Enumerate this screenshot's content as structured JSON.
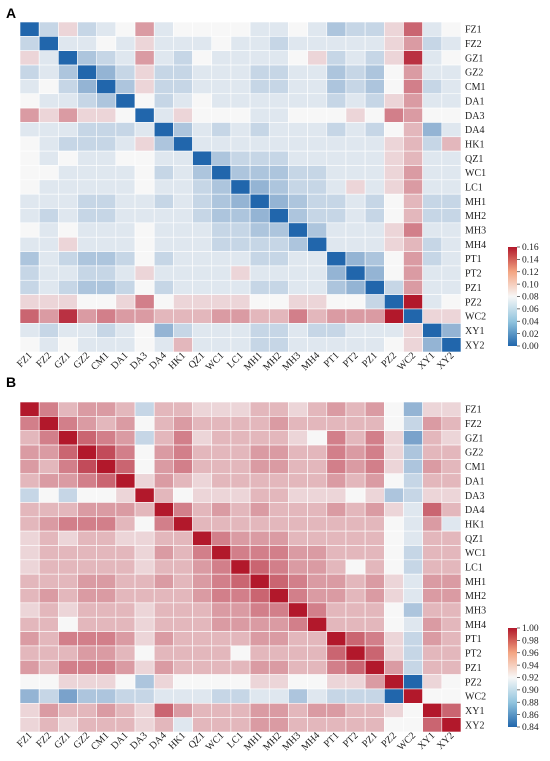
{
  "chart_data": [
    {
      "type": "heatmap",
      "panel_label": "A",
      "labels": [
        "FZ1",
        "FZ2",
        "GZ1",
        "GZ2",
        "CM1",
        "DA1",
        "DA3",
        "DA4",
        "HK1",
        "QZ1",
        "WC1",
        "LC1",
        "MH1",
        "MH2",
        "MH3",
        "MH4",
        "PT1",
        "PT2",
        "PZ1",
        "PZ2",
        "WC2",
        "XY1",
        "XY2"
      ],
      "colorbar": {
        "min": 0.0,
        "max": 0.16,
        "ticks": [
          "0.00",
          "0.02",
          "0.04",
          "0.06",
          "0.08",
          "0.10",
          "0.12",
          "0.14",
          "0.16"
        ]
      },
      "colors": {
        "low": "#2166ac",
        "mid": "#f7f7f7",
        "high": "#b2182b"
      },
      "values": [
        [
          0.0,
          0.06,
          0.09,
          0.06,
          0.07,
          0.08,
          0.11,
          0.07,
          0.08,
          0.08,
          0.08,
          0.08,
          0.07,
          0.07,
          0.08,
          0.07,
          0.05,
          0.06,
          0.06,
          0.09,
          0.13,
          0.07,
          0.08
        ],
        [
          0.06,
          0.0,
          0.07,
          0.07,
          0.08,
          0.07,
          0.09,
          0.07,
          0.07,
          0.07,
          0.08,
          0.07,
          0.07,
          0.06,
          0.07,
          0.07,
          0.07,
          0.07,
          0.07,
          0.09,
          0.11,
          0.06,
          0.07
        ],
        [
          0.09,
          0.07,
          0.0,
          0.05,
          0.06,
          0.07,
          0.11,
          0.07,
          0.06,
          0.08,
          0.07,
          0.07,
          0.07,
          0.07,
          0.08,
          0.09,
          0.06,
          0.07,
          0.06,
          0.09,
          0.15,
          0.07,
          0.08
        ],
        [
          0.06,
          0.07,
          0.05,
          0.0,
          0.04,
          0.06,
          0.09,
          0.06,
          0.06,
          0.07,
          0.07,
          0.07,
          0.06,
          0.06,
          0.07,
          0.07,
          0.05,
          0.06,
          0.05,
          0.08,
          0.11,
          0.07,
          0.07
        ],
        [
          0.07,
          0.08,
          0.06,
          0.04,
          0.0,
          0.05,
          0.09,
          0.06,
          0.06,
          0.07,
          0.07,
          0.07,
          0.06,
          0.06,
          0.07,
          0.07,
          0.05,
          0.06,
          0.05,
          0.08,
          0.12,
          0.06,
          0.07
        ],
        [
          0.08,
          0.07,
          0.07,
          0.06,
          0.05,
          0.0,
          0.08,
          0.06,
          0.07,
          0.08,
          0.07,
          0.07,
          0.07,
          0.07,
          0.07,
          0.07,
          0.06,
          0.07,
          0.06,
          0.09,
          0.11,
          0.07,
          0.07
        ],
        [
          0.11,
          0.09,
          0.11,
          0.09,
          0.09,
          0.08,
          0.0,
          0.07,
          0.09,
          0.08,
          0.08,
          0.08,
          0.07,
          0.07,
          0.08,
          0.08,
          0.08,
          0.09,
          0.08,
          0.12,
          0.11,
          0.08,
          0.08
        ],
        [
          0.07,
          0.07,
          0.07,
          0.06,
          0.06,
          0.06,
          0.07,
          0.0,
          0.05,
          0.07,
          0.06,
          0.07,
          0.06,
          0.07,
          0.07,
          0.07,
          0.06,
          0.07,
          0.06,
          0.08,
          0.1,
          0.04,
          0.07
        ],
        [
          0.08,
          0.07,
          0.06,
          0.06,
          0.06,
          0.07,
          0.09,
          0.05,
          0.0,
          0.07,
          0.07,
          0.07,
          0.07,
          0.07,
          0.07,
          0.07,
          0.07,
          0.07,
          0.07,
          0.09,
          0.1,
          0.06,
          0.1
        ],
        [
          0.08,
          0.07,
          0.08,
          0.07,
          0.07,
          0.08,
          0.08,
          0.07,
          0.07,
          0.0,
          0.05,
          0.06,
          0.06,
          0.06,
          0.07,
          0.07,
          0.07,
          0.07,
          0.07,
          0.09,
          0.1,
          0.07,
          0.07
        ],
        [
          0.08,
          0.08,
          0.07,
          0.07,
          0.07,
          0.07,
          0.08,
          0.06,
          0.07,
          0.05,
          0.0,
          0.05,
          0.05,
          0.05,
          0.06,
          0.06,
          0.07,
          0.07,
          0.07,
          0.09,
          0.11,
          0.07,
          0.07
        ],
        [
          0.08,
          0.07,
          0.07,
          0.07,
          0.07,
          0.07,
          0.08,
          0.07,
          0.07,
          0.06,
          0.05,
          0.0,
          0.04,
          0.05,
          0.06,
          0.06,
          0.07,
          0.09,
          0.07,
          0.09,
          0.11,
          0.07,
          0.07
        ],
        [
          0.07,
          0.07,
          0.07,
          0.06,
          0.06,
          0.07,
          0.07,
          0.06,
          0.07,
          0.06,
          0.05,
          0.04,
          0.0,
          0.04,
          0.05,
          0.06,
          0.06,
          0.07,
          0.06,
          0.08,
          0.1,
          0.06,
          0.06
        ],
        [
          0.07,
          0.06,
          0.07,
          0.06,
          0.06,
          0.07,
          0.07,
          0.07,
          0.07,
          0.06,
          0.05,
          0.05,
          0.04,
          0.0,
          0.05,
          0.06,
          0.06,
          0.07,
          0.06,
          0.08,
          0.1,
          0.06,
          0.06
        ],
        [
          0.08,
          0.07,
          0.08,
          0.07,
          0.07,
          0.07,
          0.08,
          0.07,
          0.07,
          0.07,
          0.06,
          0.06,
          0.05,
          0.05,
          0.0,
          0.05,
          0.07,
          0.07,
          0.07,
          0.09,
          0.12,
          0.07,
          0.07
        ],
        [
          0.07,
          0.07,
          0.09,
          0.07,
          0.07,
          0.07,
          0.08,
          0.07,
          0.07,
          0.07,
          0.06,
          0.06,
          0.06,
          0.06,
          0.05,
          0.0,
          0.07,
          0.07,
          0.07,
          0.09,
          0.1,
          0.06,
          0.07
        ],
        [
          0.05,
          0.07,
          0.06,
          0.05,
          0.05,
          0.06,
          0.08,
          0.06,
          0.07,
          0.07,
          0.07,
          0.07,
          0.06,
          0.06,
          0.07,
          0.07,
          0.0,
          0.04,
          0.05,
          0.08,
          0.11,
          0.06,
          0.07
        ],
        [
          0.06,
          0.07,
          0.07,
          0.06,
          0.06,
          0.07,
          0.09,
          0.07,
          0.07,
          0.07,
          0.07,
          0.09,
          0.07,
          0.07,
          0.07,
          0.07,
          0.04,
          0.0,
          0.04,
          0.08,
          0.11,
          0.07,
          0.07
        ],
        [
          0.06,
          0.07,
          0.06,
          0.05,
          0.05,
          0.06,
          0.08,
          0.06,
          0.07,
          0.07,
          0.07,
          0.07,
          0.06,
          0.06,
          0.07,
          0.07,
          0.05,
          0.04,
          0.0,
          0.06,
          0.11,
          0.07,
          0.07
        ],
        [
          0.09,
          0.09,
          0.09,
          0.08,
          0.08,
          0.09,
          0.12,
          0.08,
          0.09,
          0.09,
          0.09,
          0.09,
          0.08,
          0.08,
          0.09,
          0.09,
          0.08,
          0.08,
          0.06,
          0.0,
          0.16,
          0.07,
          0.08
        ],
        [
          0.13,
          0.11,
          0.15,
          0.11,
          0.12,
          0.11,
          0.11,
          0.1,
          0.1,
          0.1,
          0.11,
          0.11,
          0.1,
          0.1,
          0.12,
          0.1,
          0.11,
          0.11,
          0.11,
          0.16,
          0.0,
          0.09,
          0.09
        ],
        [
          0.07,
          0.06,
          0.07,
          0.07,
          0.06,
          0.07,
          0.08,
          0.04,
          0.06,
          0.07,
          0.07,
          0.07,
          0.06,
          0.06,
          0.07,
          0.06,
          0.06,
          0.07,
          0.07,
          0.07,
          0.09,
          0.0,
          0.04
        ],
        [
          0.08,
          0.07,
          0.08,
          0.07,
          0.07,
          0.07,
          0.08,
          0.07,
          0.1,
          0.07,
          0.07,
          0.07,
          0.06,
          0.06,
          0.07,
          0.07,
          0.07,
          0.07,
          0.07,
          0.08,
          0.09,
          0.04,
          0.0
        ]
      ]
    },
    {
      "type": "heatmap",
      "panel_label": "B",
      "labels": [
        "FZ1",
        "FZ2",
        "GZ1",
        "GZ2",
        "CM1",
        "DA1",
        "DA3",
        "DA4",
        "HK1",
        "QZ1",
        "WC1",
        "LC1",
        "MH1",
        "MH2",
        "MH3",
        "MH4",
        "PT1",
        "PT2",
        "PZ1",
        "PZ2",
        "WC2",
        "XY1",
        "XY2"
      ],
      "colorbar": {
        "min": 0.84,
        "max": 1.0,
        "ticks": [
          "0.84",
          "0.86",
          "0.88",
          "0.90",
          "0.92",
          "0.94",
          "0.96",
          "0.98",
          "1.00"
        ]
      },
      "colors": {
        "low": "#2166ac",
        "mid": "#f7f7f7",
        "high": "#b2182b"
      },
      "values": [
        [
          1.0,
          0.96,
          0.94,
          0.95,
          0.95,
          0.94,
          0.9,
          0.94,
          0.94,
          0.93,
          0.93,
          0.93,
          0.94,
          0.94,
          0.93,
          0.94,
          0.95,
          0.94,
          0.95,
          0.92,
          0.88,
          0.93,
          0.93
        ],
        [
          0.96,
          1.0,
          0.96,
          0.95,
          0.94,
          0.95,
          0.92,
          0.94,
          0.95,
          0.94,
          0.94,
          0.94,
          0.94,
          0.95,
          0.94,
          0.94,
          0.94,
          0.94,
          0.94,
          0.92,
          0.9,
          0.95,
          0.94
        ],
        [
          0.94,
          0.96,
          1.0,
          0.97,
          0.96,
          0.95,
          0.9,
          0.94,
          0.96,
          0.93,
          0.94,
          0.94,
          0.94,
          0.94,
          0.93,
          0.92,
          0.96,
          0.94,
          0.96,
          0.93,
          0.87,
          0.94,
          0.93
        ],
        [
          0.95,
          0.95,
          0.97,
          1.0,
          0.98,
          0.96,
          0.92,
          0.95,
          0.96,
          0.94,
          0.94,
          0.94,
          0.95,
          0.95,
          0.94,
          0.94,
          0.96,
          0.95,
          0.96,
          0.93,
          0.89,
          0.94,
          0.94
        ],
        [
          0.95,
          0.94,
          0.96,
          0.98,
          1.0,
          0.97,
          0.92,
          0.95,
          0.96,
          0.94,
          0.94,
          0.94,
          0.95,
          0.95,
          0.94,
          0.94,
          0.96,
          0.95,
          0.96,
          0.93,
          0.89,
          0.95,
          0.94
        ],
        [
          0.94,
          0.95,
          0.95,
          0.96,
          0.97,
          1.0,
          0.93,
          0.95,
          0.94,
          0.93,
          0.94,
          0.94,
          0.94,
          0.94,
          0.94,
          0.94,
          0.95,
          0.94,
          0.95,
          0.92,
          0.9,
          0.94,
          0.94
        ],
        [
          0.9,
          0.92,
          0.9,
          0.92,
          0.92,
          0.93,
          1.0,
          0.94,
          0.92,
          0.93,
          0.93,
          0.93,
          0.94,
          0.94,
          0.93,
          0.93,
          0.93,
          0.92,
          0.93,
          0.89,
          0.9,
          0.93,
          0.93
        ],
        [
          0.94,
          0.94,
          0.94,
          0.95,
          0.95,
          0.95,
          0.94,
          1.0,
          0.96,
          0.94,
          0.95,
          0.94,
          0.95,
          0.94,
          0.94,
          0.94,
          0.95,
          0.94,
          0.95,
          0.93,
          0.91,
          0.97,
          0.94
        ],
        [
          0.94,
          0.95,
          0.96,
          0.96,
          0.96,
          0.94,
          0.92,
          0.96,
          1.0,
          0.94,
          0.94,
          0.94,
          0.94,
          0.94,
          0.94,
          0.94,
          0.94,
          0.94,
          0.94,
          0.92,
          0.91,
          0.95,
          0.91
        ],
        [
          0.93,
          0.94,
          0.93,
          0.94,
          0.94,
          0.93,
          0.93,
          0.94,
          0.94,
          1.0,
          0.96,
          0.95,
          0.95,
          0.95,
          0.94,
          0.94,
          0.94,
          0.94,
          0.94,
          0.92,
          0.91,
          0.94,
          0.94
        ],
        [
          0.93,
          0.94,
          0.94,
          0.94,
          0.94,
          0.94,
          0.93,
          0.95,
          0.94,
          0.96,
          1.0,
          0.96,
          0.96,
          0.96,
          0.95,
          0.95,
          0.94,
          0.94,
          0.94,
          0.92,
          0.9,
          0.94,
          0.94
        ],
        [
          0.93,
          0.94,
          0.94,
          0.94,
          0.94,
          0.94,
          0.93,
          0.94,
          0.94,
          0.95,
          0.96,
          1.0,
          0.97,
          0.96,
          0.95,
          0.95,
          0.94,
          0.92,
          0.94,
          0.92,
          0.9,
          0.94,
          0.94
        ],
        [
          0.94,
          0.94,
          0.94,
          0.95,
          0.95,
          0.94,
          0.94,
          0.95,
          0.94,
          0.95,
          0.96,
          0.97,
          1.0,
          0.97,
          0.96,
          0.95,
          0.95,
          0.94,
          0.95,
          0.93,
          0.91,
          0.95,
          0.95
        ],
        [
          0.94,
          0.95,
          0.94,
          0.95,
          0.95,
          0.94,
          0.94,
          0.94,
          0.94,
          0.95,
          0.96,
          0.96,
          0.97,
          1.0,
          0.96,
          0.95,
          0.95,
          0.94,
          0.95,
          0.93,
          0.91,
          0.95,
          0.95
        ],
        [
          0.93,
          0.94,
          0.93,
          0.94,
          0.94,
          0.94,
          0.93,
          0.94,
          0.94,
          0.94,
          0.95,
          0.95,
          0.96,
          0.96,
          1.0,
          0.96,
          0.94,
          0.94,
          0.94,
          0.92,
          0.89,
          0.94,
          0.94
        ],
        [
          0.94,
          0.94,
          0.92,
          0.94,
          0.94,
          0.94,
          0.93,
          0.94,
          0.94,
          0.94,
          0.95,
          0.95,
          0.95,
          0.95,
          0.96,
          1.0,
          0.94,
          0.94,
          0.94,
          0.92,
          0.91,
          0.95,
          0.94
        ],
        [
          0.95,
          0.94,
          0.96,
          0.96,
          0.96,
          0.95,
          0.93,
          0.95,
          0.94,
          0.94,
          0.94,
          0.94,
          0.95,
          0.95,
          0.94,
          0.94,
          1.0,
          0.97,
          0.96,
          0.93,
          0.9,
          0.95,
          0.94
        ],
        [
          0.94,
          0.94,
          0.94,
          0.95,
          0.95,
          0.94,
          0.92,
          0.94,
          0.94,
          0.94,
          0.94,
          0.92,
          0.94,
          0.94,
          0.94,
          0.94,
          0.97,
          1.0,
          0.97,
          0.93,
          0.9,
          0.94,
          0.94
        ],
        [
          0.95,
          0.94,
          0.96,
          0.96,
          0.96,
          0.95,
          0.93,
          0.95,
          0.94,
          0.94,
          0.94,
          0.94,
          0.95,
          0.95,
          0.94,
          0.94,
          0.96,
          0.97,
          1.0,
          0.95,
          0.9,
          0.94,
          0.94
        ],
        [
          0.92,
          0.92,
          0.93,
          0.93,
          0.93,
          0.92,
          0.89,
          0.93,
          0.92,
          0.92,
          0.92,
          0.92,
          0.93,
          0.93,
          0.92,
          0.92,
          0.93,
          0.93,
          0.95,
          1.0,
          0.84,
          0.93,
          0.92
        ],
        [
          0.88,
          0.9,
          0.87,
          0.89,
          0.89,
          0.9,
          0.9,
          0.91,
          0.91,
          0.91,
          0.9,
          0.9,
          0.91,
          0.91,
          0.89,
          0.91,
          0.9,
          0.9,
          0.9,
          0.84,
          1.0,
          0.92,
          0.92
        ],
        [
          0.93,
          0.95,
          0.94,
          0.94,
          0.95,
          0.94,
          0.93,
          0.97,
          0.95,
          0.94,
          0.94,
          0.94,
          0.95,
          0.95,
          0.94,
          0.95,
          0.95,
          0.94,
          0.94,
          0.93,
          0.92,
          1.0,
          0.97
        ],
        [
          0.93,
          0.94,
          0.93,
          0.94,
          0.94,
          0.94,
          0.93,
          0.94,
          0.91,
          0.94,
          0.94,
          0.94,
          0.95,
          0.95,
          0.94,
          0.94,
          0.94,
          0.94,
          0.94,
          0.92,
          0.92,
          0.97,
          1.0
        ]
      ]
    }
  ]
}
